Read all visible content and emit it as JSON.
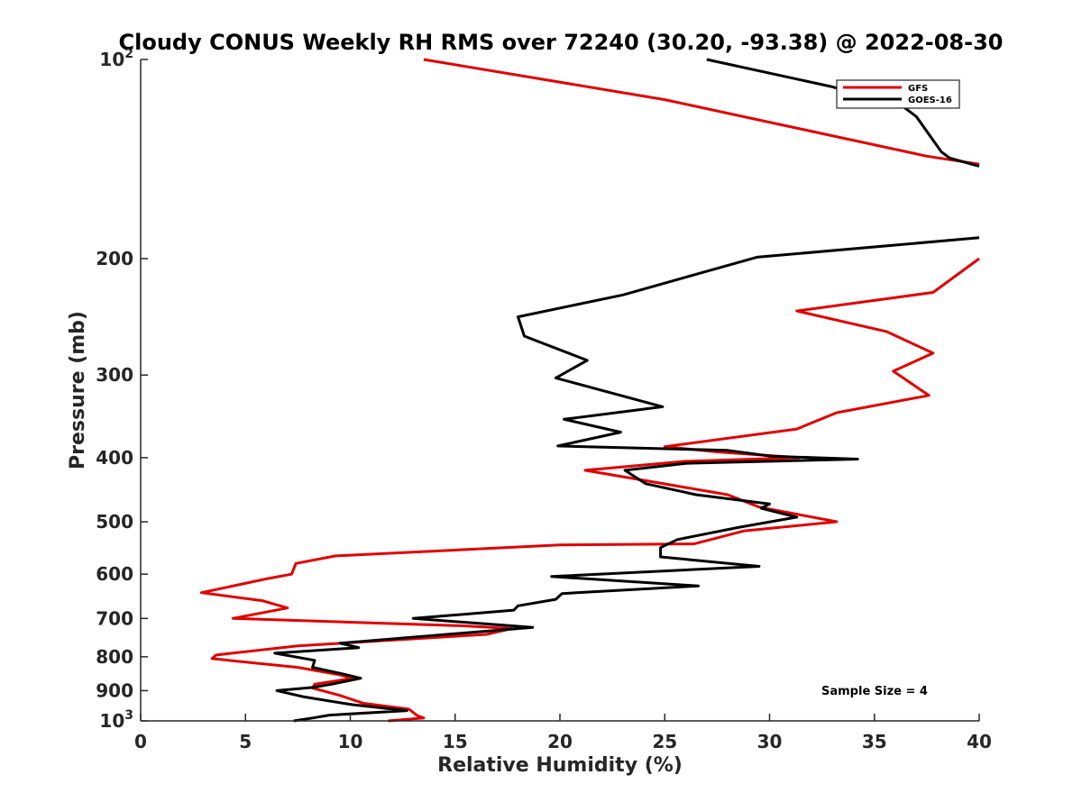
{
  "chart_data": {
    "type": "line",
    "title": "Cloudy CONUS Weekly RH RMS over 72240 (30.20, -93.38) @ 2022-08-30",
    "xlabel": "Relative Humidity (%)",
    "ylabel": "Pressure (mb)",
    "xlim": [
      0,
      40
    ],
    "ylim": [
      100,
      1000
    ],
    "yscale": "log",
    "yreversed": true,
    "xticks": [
      0,
      5,
      10,
      15,
      20,
      25,
      30,
      35,
      40
    ],
    "xtick_labels": [
      "0",
      "5",
      "10",
      "15",
      "20",
      "25",
      "30",
      "35",
      "40"
    ],
    "yticks": [
      {
        "value": 100,
        "base": "10",
        "exp": "2"
      },
      {
        "value": 200,
        "label": "200"
      },
      {
        "value": 300,
        "label": "300"
      },
      {
        "value": 400,
        "label": "400"
      },
      {
        "value": 500,
        "label": "500"
      },
      {
        "value": 600,
        "label": "600"
      },
      {
        "value": 700,
        "label": "700"
      },
      {
        "value": 800,
        "label": "800"
      },
      {
        "value": 900,
        "label": "900"
      },
      {
        "value": 1000,
        "base": "10",
        "exp": "3"
      }
    ],
    "legend": {
      "placement": "top-right"
    },
    "annotation": "Sample Size = 4",
    "series": [
      {
        "name": "GFS",
        "color": "#e00000",
        "segments": [
          [
            [
              13.5,
              100
            ],
            [
              25,
              115
            ],
            [
              37.5,
              140
            ],
            [
              40,
              144
            ]
          ],
          [
            [
              40,
              200
            ],
            [
              37.8,
              225
            ],
            [
              31.3,
              240
            ],
            [
              35.6,
              258
            ],
            [
              37.8,
              278
            ],
            [
              35.9,
              296
            ],
            [
              37.6,
              322
            ],
            [
              33.2,
              342
            ],
            [
              31.3,
              362
            ],
            [
              25,
              385
            ],
            [
              27.5,
              392
            ],
            [
              31.4,
              400
            ],
            [
              26,
              405
            ],
            [
              21.2,
              418
            ],
            [
              28,
              455
            ],
            [
              29.5,
              475
            ],
            [
              33.2,
              500
            ],
            [
              28.8,
              516
            ],
            [
              26.4,
              540
            ],
            [
              20,
              542
            ],
            [
              9.3,
              563
            ],
            [
              7.4,
              578
            ],
            [
              7.2,
              600
            ],
            [
              6.0,
              610
            ],
            [
              2.9,
              640
            ],
            [
              5.8,
              658
            ],
            [
              7.0,
              675
            ],
            [
              4.4,
              700
            ],
            [
              15.3,
              718
            ],
            [
              17.7,
              725
            ],
            [
              16.5,
              740
            ],
            [
              7.5,
              770
            ],
            [
              3.6,
              795
            ],
            [
              3.4,
              805
            ],
            [
              7.5,
              830
            ],
            [
              9.5,
              852
            ],
            [
              10.1,
              862
            ],
            [
              8.3,
              880
            ],
            [
              8.2,
              892
            ],
            [
              9.5,
              915
            ],
            [
              10.6,
              940
            ],
            [
              12.8,
              960
            ],
            [
              13.2,
              982
            ],
            [
              13.5,
              990
            ],
            [
              11.8,
              1000
            ]
          ]
        ]
      },
      {
        "name": "GOES-16",
        "color": "#000000",
        "segments": [
          [
            [
              27,
              100
            ],
            [
              33,
              110
            ],
            [
              36.4,
              118
            ],
            [
              37,
              122
            ],
            [
              38.2,
              138
            ],
            [
              38.6,
              141
            ],
            [
              40,
              145
            ]
          ],
          [
            [
              40,
              186
            ],
            [
              29.4,
              199
            ],
            [
              23,
              227
            ],
            [
              18,
              245
            ],
            [
              18.3,
              262
            ],
            [
              21.3,
              285
            ],
            [
              19.8,
              303
            ],
            [
              24.9,
              335
            ],
            [
              20.2,
              350
            ],
            [
              22.9,
              366
            ],
            [
              19.9,
              384
            ],
            [
              28,
              390
            ],
            [
              30.1,
              398
            ],
            [
              34.2,
              402
            ],
            [
              26,
              408
            ],
            [
              23.1,
              418
            ],
            [
              23.6,
              428
            ],
            [
              24.1,
              438
            ],
            [
              26.5,
              455
            ],
            [
              30,
              470
            ],
            [
              29.6,
              477
            ],
            [
              31.3,
              492
            ],
            [
              28.5,
              510
            ],
            [
              25.6,
              532
            ],
            [
              24.8,
              547
            ],
            [
              24.8,
              565
            ],
            [
              29.5,
              584
            ],
            [
              19.6,
              605
            ],
            [
              26.6,
              625
            ],
            [
              20.1,
              642
            ],
            [
              19.8,
              655
            ],
            [
              18.0,
              670
            ],
            [
              17.8,
              680
            ],
            [
              13,
              700
            ],
            [
              18.7,
              722
            ],
            [
              9.5,
              763
            ],
            [
              10.4,
              775
            ],
            [
              6.4,
              790
            ],
            [
              8.3,
              810
            ],
            [
              8.2,
              830
            ],
            [
              9.7,
              850
            ],
            [
              10.5,
              862
            ],
            [
              9.1,
              880
            ],
            [
              8.2,
              890
            ],
            [
              6.5,
              900
            ],
            [
              7.8,
              920
            ],
            [
              10.1,
              945
            ],
            [
              12.7,
              965
            ],
            [
              9.0,
              980
            ],
            [
              8.2,
              990
            ],
            [
              7.3,
              1000
            ]
          ]
        ]
      }
    ]
  }
}
